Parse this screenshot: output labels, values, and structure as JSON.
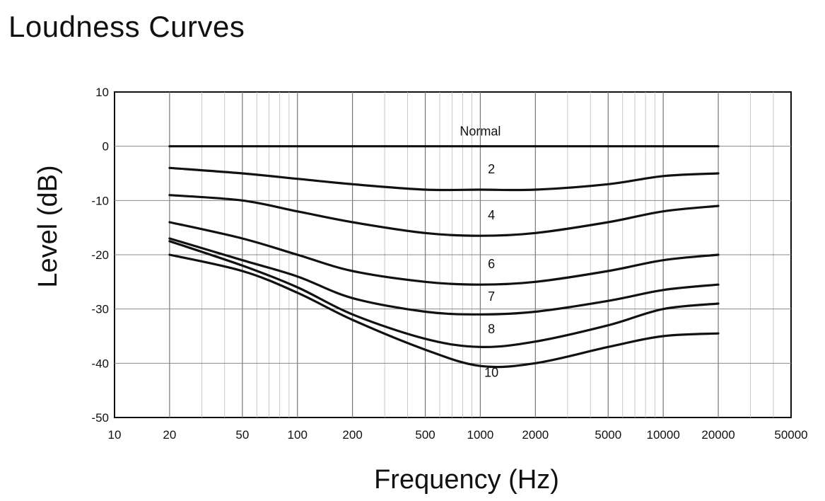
{
  "title": "Loudness Curves",
  "chart_data": {
    "type": "line",
    "title": "Loudness Curves",
    "xlabel": "Frequency (Hz)",
    "ylabel": "Level (dB)",
    "x_scale": "log",
    "xlim": [
      10,
      50000
    ],
    "ylim": [
      -50,
      10
    ],
    "x_ticks": [
      10,
      20,
      50,
      100,
      200,
      500,
      1000,
      2000,
      5000,
      10000,
      20000,
      50000
    ],
    "x_tick_labels": [
      "10",
      "20",
      "50",
      "100",
      "200",
      "500",
      "1000",
      "2000",
      "5000",
      "10000",
      "20000",
      "50000"
    ],
    "y_ticks": [
      10,
      0,
      -10,
      -20,
      -30,
      -40,
      -50
    ],
    "y_tick_labels": [
      "10",
      "0",
      "-10",
      "-20",
      "-30",
      "-40",
      "-50"
    ],
    "grid": true,
    "x": [
      20,
      50,
      100,
      200,
      500,
      1000,
      2000,
      5000,
      10000,
      20000
    ],
    "series": [
      {
        "name": "Normal",
        "values": [
          0,
          0,
          0,
          0,
          0,
          0,
          0,
          0,
          0,
          0
        ],
        "label_at": {
          "x": 1000,
          "y": 2
        }
      },
      {
        "name": "2",
        "values": [
          -4,
          -5,
          -6,
          -7,
          -8,
          -8,
          -8,
          -7,
          -5.5,
          -5
        ],
        "label_at": {
          "x": 1150,
          "y": -5
        }
      },
      {
        "name": "4",
        "values": [
          -9,
          -10,
          -12,
          -14,
          -16,
          -16.5,
          -16,
          -14,
          -12,
          -11
        ],
        "label_at": {
          "x": 1150,
          "y": -13.5
        }
      },
      {
        "name": "6",
        "values": [
          -14,
          -17,
          -20,
          -23,
          -25,
          -25.5,
          -25,
          -23,
          -21,
          -20
        ],
        "label_at": {
          "x": 1150,
          "y": -22.5
        }
      },
      {
        "name": "7",
        "values": [
          -17,
          -21,
          -24,
          -28,
          -30.5,
          -31,
          -30.5,
          -28.5,
          -26.5,
          -25.5
        ],
        "label_at": {
          "x": 1150,
          "y": -28.5
        }
      },
      {
        "name": "8",
        "values": [
          -17.5,
          -22,
          -26,
          -31,
          -35.5,
          -37,
          -36,
          -33,
          -30,
          -29
        ],
        "label_at": {
          "x": 1150,
          "y": -34.5
        }
      },
      {
        "name": "10",
        "values": [
          -20,
          -23,
          -27,
          -32,
          -37.5,
          -40.5,
          -40,
          -37,
          -35,
          -34.5
        ],
        "label_at": {
          "x": 1150,
          "y": -42.5
        }
      }
    ]
  }
}
